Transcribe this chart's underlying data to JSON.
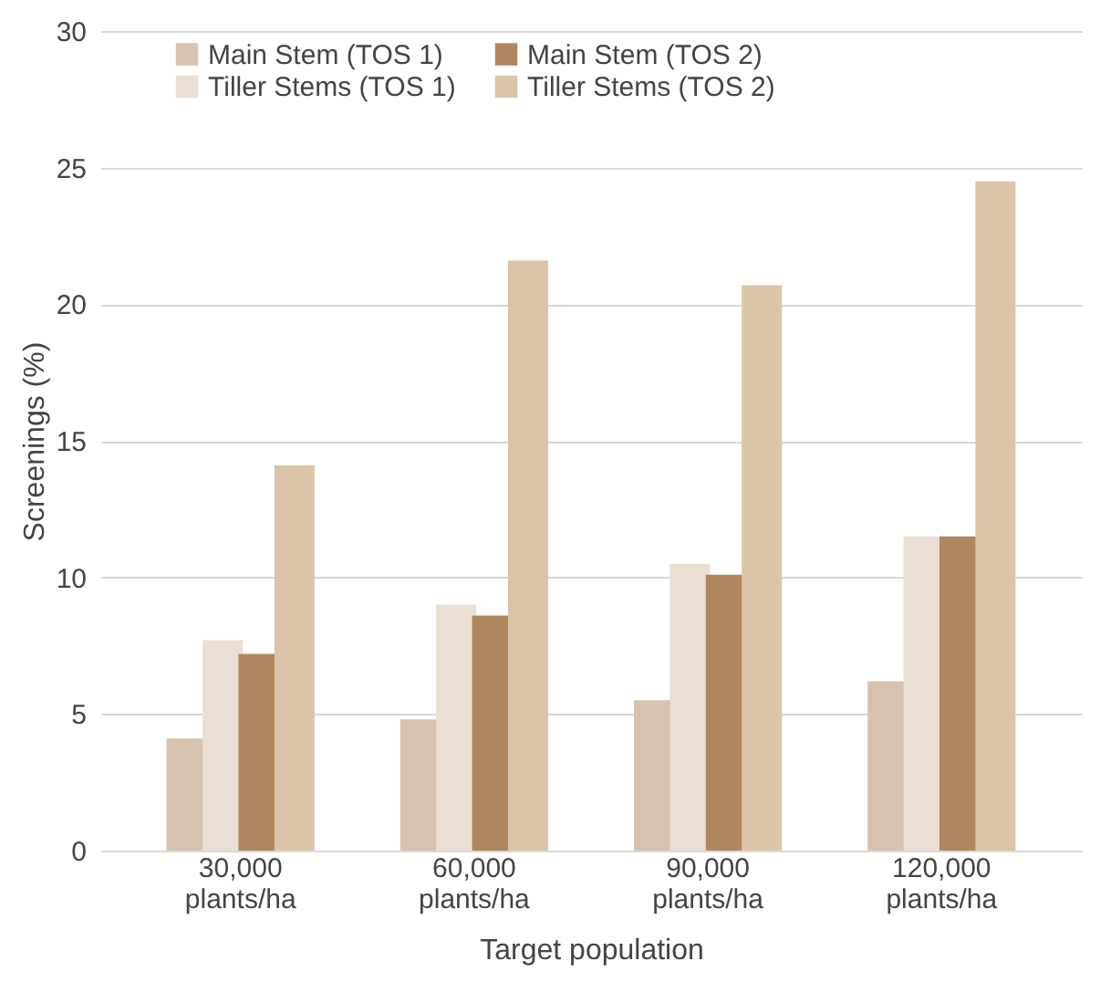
{
  "chart_data": {
    "type": "bar",
    "xlabel": "Target population",
    "ylabel": "Screenings (%)",
    "categories": [
      "30,000 plants/ha",
      "60,000 plants/ha",
      "90,000 plants/ha",
      "120,000 plants/ha"
    ],
    "series": [
      {
        "name": "Main Stem (TOS 1)",
        "color": "#d6c2ae",
        "values": [
          4.1,
          4.8,
          5.5,
          6.2
        ]
      },
      {
        "name": "Tiller Stems (TOS 1)",
        "color": "#ebdfd3",
        "values": [
          7.7,
          9.0,
          10.5,
          11.5
        ]
      },
      {
        "name": "Main Stem (TOS 2)",
        "color": "#b0865e",
        "values": [
          7.2,
          8.6,
          10.1,
          11.5
        ]
      },
      {
        "name": "Tiller Stems (TOS 2)",
        "color": "#dcc4a8",
        "values": [
          14.1,
          21.6,
          20.7,
          24.5
        ]
      }
    ],
    "ylim": [
      0,
      30
    ],
    "yticks": [
      0,
      5,
      10,
      15,
      20,
      25,
      30
    ],
    "grid": "y",
    "legend": "top"
  }
}
